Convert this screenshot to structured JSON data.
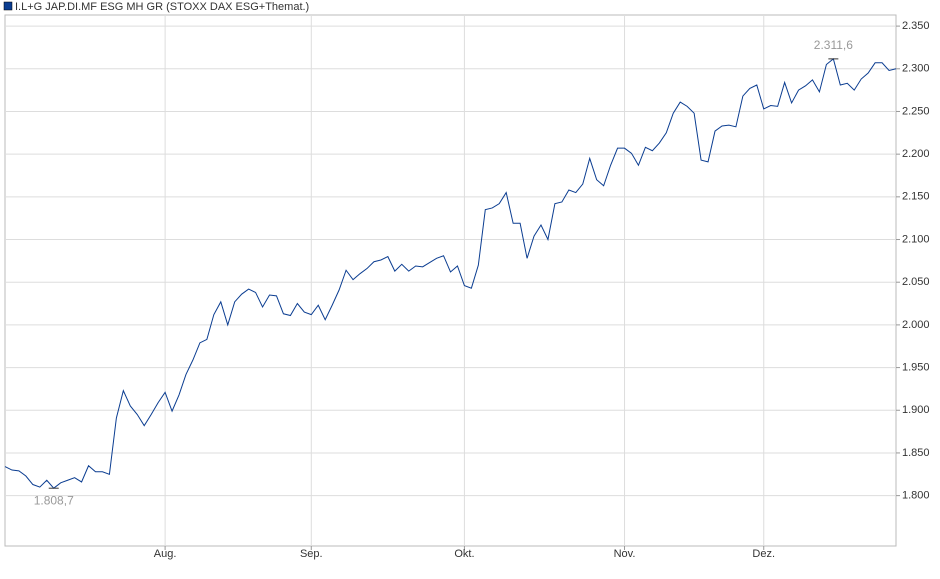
{
  "chart_data": {
    "type": "line",
    "categories": [
      null,
      null,
      null,
      null,
      null,
      null,
      null,
      null,
      null,
      null,
      null,
      null,
      null,
      null,
      null,
      null,
      null,
      null,
      null,
      null,
      null,
      null,
      null,
      "Aug.",
      null,
      null,
      null,
      null,
      null,
      null,
      null,
      null,
      null,
      null,
      null,
      null,
      null,
      null,
      null,
      null,
      null,
      null,
      null,
      null,
      "Sep.",
      null,
      null,
      null,
      null,
      null,
      null,
      null,
      null,
      null,
      null,
      null,
      null,
      null,
      null,
      null,
      null,
      null,
      null,
      null,
      null,
      null,
      "Okt.",
      null,
      null,
      null,
      null,
      null,
      null,
      null,
      null,
      null,
      null,
      null,
      null,
      null,
      null,
      null,
      null,
      null,
      null,
      null,
      null,
      null,
      null,
      "Nov.",
      null,
      null,
      null,
      null,
      null,
      null,
      null,
      null,
      null,
      null,
      null,
      null,
      null,
      null,
      null,
      null,
      null,
      null,
      null,
      "Dez.",
      null,
      null,
      null,
      null,
      null,
      null,
      null,
      null,
      null,
      null,
      null,
      null,
      null,
      null,
      null,
      null,
      null,
      null,
      null
    ],
    "series": [
      {
        "name": "I.L+G JAP.DI.MF ESG MH GR (STOXX DAX ESG+Themat.)",
        "color": "#0b3d91",
        "values": [
          1834,
          1830,
          1829,
          1823,
          1813,
          1810,
          1818,
          1808.7,
          1815,
          1818,
          1821,
          1816,
          1835,
          1828,
          1828,
          1825,
          1891,
          1923,
          1905,
          1895,
          1882,
          1895,
          1909,
          1921,
          1899,
          1918,
          1942,
          1959,
          1979,
          1983,
          2012,
          2027,
          2000,
          2027,
          2036,
          2042,
          2038,
          2021,
          2035,
          2034,
          2013,
          2011,
          2025,
          2015,
          2012,
          2023,
          2006,
          2023,
          2041,
          2064,
          2053,
          2060,
          2066,
          2074,
          2076,
          2080,
          2063,
          2071,
          2063,
          2069,
          2068,
          2073,
          2078,
          2081,
          2062,
          2069,
          2046,
          2043,
          2070,
          2135,
          2137,
          2142,
          2155,
          2119,
          2119,
          2078,
          2104,
          2117,
          2100,
          2142,
          2144,
          2158,
          2155,
          2165,
          2195,
          2170,
          2163,
          2187,
          2207,
          2207,
          2201,
          2187,
          2208,
          2204,
          2213,
          2225,
          2248,
          2261,
          2256,
          2248,
          2193,
          2191,
          2227,
          2233,
          2234,
          2232,
          2268,
          2277,
          2281,
          2253,
          2257,
          2256,
          2284,
          2260,
          2275,
          2280,
          2287,
          2273,
          2305,
          2311.6,
          2281,
          2283,
          2275,
          2288,
          2295,
          2307,
          2307,
          2298,
          2300
        ],
        "value_labels": [
          null,
          null,
          null,
          null,
          null,
          null,
          null,
          "1.808,7",
          null,
          null,
          null,
          null,
          null,
          null,
          null,
          null,
          null,
          null,
          null,
          null,
          null,
          null,
          null,
          null,
          null,
          null,
          null,
          null,
          null,
          null,
          null,
          null,
          null,
          null,
          null,
          null,
          null,
          null,
          null,
          null,
          null,
          null,
          null,
          null,
          null,
          null,
          null,
          null,
          null,
          null,
          null,
          null,
          null,
          null,
          null,
          null,
          null,
          null,
          null,
          null,
          null,
          null,
          null,
          null,
          null,
          null,
          null,
          null,
          null,
          null,
          null,
          null,
          null,
          null,
          null,
          null,
          null,
          null,
          null,
          null,
          null,
          null,
          null,
          null,
          null,
          null,
          null,
          null,
          null,
          null,
          null,
          null,
          null,
          null,
          null,
          null,
          null,
          null,
          null,
          null,
          null,
          null,
          null,
          null,
          null,
          null,
          null,
          null,
          null,
          null,
          null,
          null,
          null,
          null,
          null,
          null,
          null,
          null,
          null,
          "2.311,6",
          null,
          null,
          null,
          null,
          null,
          null,
          null,
          null,
          null
        ]
      }
    ],
    "ylim": [
      1741,
      2363
    ],
    "yticks": [
      {
        "value": 1800,
        "label": "1.800"
      },
      {
        "value": 1850,
        "label": "1.850"
      },
      {
        "value": 1900,
        "label": "1.900"
      },
      {
        "value": 1950,
        "label": "1.950"
      },
      {
        "value": 2000,
        "label": "2.000"
      },
      {
        "value": 2050,
        "label": "2.050"
      },
      {
        "value": 2100,
        "label": "2.100"
      },
      {
        "value": 2150,
        "label": "2.150"
      },
      {
        "value": 2200,
        "label": "2.200"
      },
      {
        "value": 2250,
        "label": "2.250"
      },
      {
        "value": 2300,
        "label": "2.300"
      },
      {
        "value": 2350,
        "label": "2.350"
      }
    ],
    "grid": true,
    "legend": "top-left"
  }
}
